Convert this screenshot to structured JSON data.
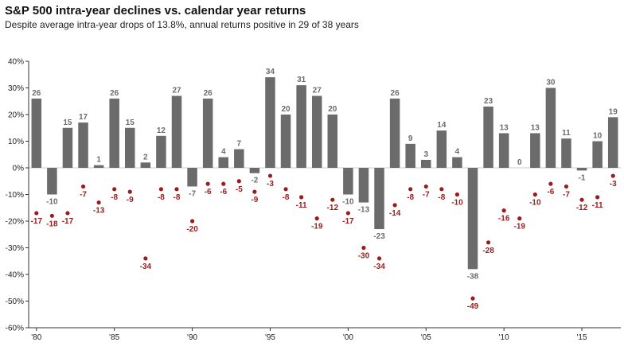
{
  "title": "S&P 500 intra-year declines vs. calendar year returns",
  "subtitle": "Despite average intra-year drops of 13.8%, annual returns positive in 29 of 38 years",
  "colors": {
    "bar": "#6b6b6b",
    "dot": "#9b1c1c",
    "axis": "#333333",
    "zero_line": "#cccccc"
  },
  "chart_data": {
    "type": "bar",
    "ylim": [
      -60,
      40
    ],
    "y_ticks": [
      "40%",
      "30%",
      "20%",
      "10%",
      "0%",
      "-10%",
      "-20%",
      "-30%",
      "-40%",
      "-50%",
      "-60%"
    ],
    "x_ticks": [
      "'80",
      "'85",
      "'90",
      "'95",
      "'00",
      "'05",
      "'10",
      "'15"
    ],
    "categories": [
      1980,
      1981,
      1982,
      1983,
      1984,
      1985,
      1986,
      1987,
      1988,
      1989,
      1990,
      1991,
      1992,
      1993,
      1994,
      1995,
      1996,
      1997,
      1998,
      1999,
      2000,
      2001,
      2002,
      2003,
      2004,
      2005,
      2006,
      2007,
      2008,
      2009,
      2010,
      2011,
      2012,
      2013,
      2014,
      2015,
      2016,
      2017
    ],
    "series": [
      {
        "values": [
          26,
          -10,
          15,
          17,
          1,
          26,
          15,
          2,
          12,
          27,
          -7,
          26,
          4,
          7,
          -2,
          34,
          20,
          31,
          27,
          20,
          -10,
          -13,
          -23,
          26,
          9,
          3,
          14,
          4,
          -38,
          23,
          13,
          0,
          13,
          30,
          11,
          -1,
          10,
          19
        ]
      },
      {
        "values": [
          -17,
          -18,
          -17,
          -7,
          -13,
          -8,
          -9,
          -34,
          -8,
          -8,
          -20,
          -6,
          -6,
          -5,
          -9,
          -3,
          -8,
          -11,
          -19,
          -12,
          -17,
          -30,
          -34,
          -14,
          -8,
          -7,
          -8,
          -10,
          -49,
          -28,
          -16,
          -19,
          -10,
          -6,
          -7,
          -12,
          -11,
          -3
        ]
      }
    ]
  }
}
